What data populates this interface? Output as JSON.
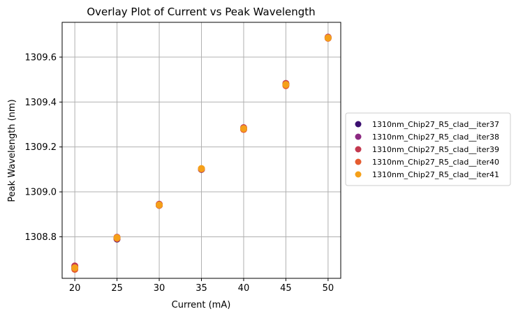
{
  "chart_data": {
    "type": "scatter",
    "title": "Overlay Plot of Current vs Peak Wavelength",
    "xlabel": "Current (mA)",
    "ylabel": "Peak Wavelength (nm)",
    "xlim": [
      18.5,
      51.5
    ],
    "ylim": [
      1308.615,
      1309.755
    ],
    "xticks": [
      20,
      25,
      30,
      35,
      40,
      45,
      50
    ],
    "yticks": [
      1308.8,
      1309.0,
      1309.2,
      1309.4,
      1309.6
    ],
    "xtick_labels": [
      "20",
      "25",
      "30",
      "35",
      "40",
      "45",
      "50"
    ],
    "ytick_labels": [
      "1308.8",
      "1309.0",
      "1309.2",
      "1309.4",
      "1309.6"
    ],
    "grid": true,
    "legend_position": "center-right outside",
    "series": [
      {
        "name": "1310nm_Chip27_R5_clad__iter37",
        "color": "#3b0f70",
        "x": [
          20,
          25,
          30,
          35,
          40,
          45,
          50
        ],
        "y": [
          1308.66,
          1308.79,
          1308.94,
          1309.1,
          1309.28,
          1309.48,
          1309.685
        ]
      },
      {
        "name": "1310nm_Chip27_R5_clad__iter38",
        "color": "#8c2981",
        "x": [
          20,
          25,
          30,
          35,
          40,
          45,
          50
        ],
        "y": [
          1308.665,
          1308.795,
          1308.943,
          1309.103,
          1309.283,
          1309.477,
          1309.687
        ]
      },
      {
        "name": "1310nm_Chip27_R5_clad__iter39",
        "color": "#c3394f",
        "x": [
          20,
          25,
          30,
          35,
          40,
          45,
          50
        ],
        "y": [
          1308.67,
          1308.798,
          1308.945,
          1309.102,
          1309.286,
          1309.483,
          1309.689
        ]
      },
      {
        "name": "1310nm_Chip27_R5_clad__iter40",
        "color": "#e55c30",
        "x": [
          20,
          25,
          30,
          35,
          40,
          45,
          50
        ],
        "y": [
          1308.655,
          1308.792,
          1308.94,
          1309.101,
          1309.278,
          1309.473,
          1309.684
        ]
      },
      {
        "name": "1310nm_Chip27_R5_clad__iter41",
        "color": "#f5a01a",
        "x": [
          20,
          25,
          30,
          35,
          40,
          45,
          50
        ],
        "y": [
          1308.662,
          1308.796,
          1308.942,
          1309.104,
          1309.282,
          1309.478,
          1309.686
        ]
      }
    ]
  }
}
